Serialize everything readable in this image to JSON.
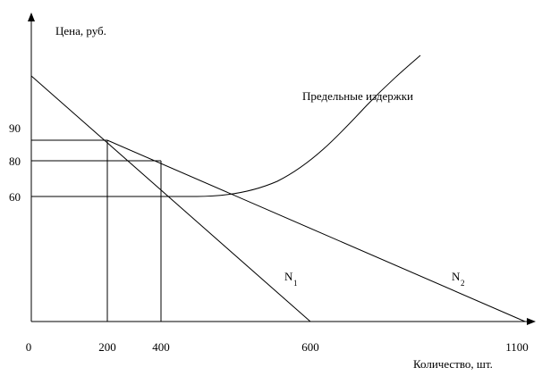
{
  "axes": {
    "y_label": "Цена, руб.",
    "x_label": "Количество, шт.",
    "y_ticks": [
      "90",
      "80",
      "60"
    ],
    "x_ticks": [
      "0",
      "200",
      "400",
      "600",
      "1100"
    ]
  },
  "curves": {
    "marginal_cost": "Предельные издержки",
    "n1": {
      "label": "N",
      "sub": "1"
    },
    "n2": {
      "label": "N",
      "sub": "2"
    }
  }
}
